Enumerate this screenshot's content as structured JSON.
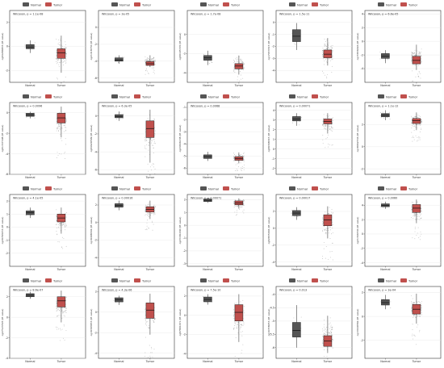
{
  "legend": {
    "normal": "Normal",
    "tumor": "Tumor"
  },
  "colors": {
    "normal": "#555555",
    "tumor": "#c0504d",
    "panel_border": "#333333",
    "grid": "#e6e6e6",
    "point": "#7f7f7f"
  },
  "chart_data": [
    {
      "type": "box",
      "title": "Wilcoxon, p = 1.1e-08",
      "ylabel": "cg04286833 (M value)",
      "categories": [
        "Normal",
        "Tumor"
      ],
      "ylim": [
        -3.0,
        3.0
      ],
      "yticks": [
        -2,
        0,
        2
      ],
      "normal": {
        "q1": -0.2,
        "median": -0.05,
        "q3": 0.15,
        "whisker_low": -0.55,
        "whisker_high": 0.5
      },
      "tumor": {
        "q1": -1.0,
        "median": -0.55,
        "q3": -0.2,
        "whisker_low": -2.2,
        "whisker_high": 0.9
      }
    },
    {
      "type": "box",
      "title": "Wilcoxon, p = 3e-05",
      "ylabel": "cg21418750 (M value)",
      "categories": [
        "Normal",
        "Tumor"
      ],
      "ylim": [
        -6.5,
        2.0
      ],
      "yticks": [
        -6,
        -4,
        -2,
        0
      ],
      "normal": {
        "q1": -4.0,
        "median": -3.85,
        "q3": -3.6,
        "whisker_low": -4.3,
        "whisker_high": -3.3
      },
      "tumor": {
        "q1": -4.5,
        "median": -4.3,
        "q3": -4.05,
        "whisker_low": -4.7,
        "whisker_high": -3.3
      }
    },
    {
      "type": "box",
      "title": "Wilcoxon, p = 1.7e-08",
      "ylabel": "cg00105370 (M value)",
      "categories": [
        "Normal",
        "Tumor"
      ],
      "ylim": [
        -5.0,
        2.5
      ],
      "yticks": [
        -4,
        -2,
        0
      ],
      "normal": {
        "q1": -2.7,
        "median": -2.45,
        "q3": -2.2,
        "whisker_low": -3.2,
        "whisker_high": -1.7
      },
      "tumor": {
        "q1": -3.6,
        "median": -3.3,
        "q3": -3.05,
        "whisker_low": -4.2,
        "whisker_high": -2.2
      }
    },
    {
      "type": "box",
      "title": "Wilcoxon, p = 1.5e-11",
      "ylabel": "cg17653547 (M value)",
      "categories": [
        "Normal",
        "Tumor"
      ],
      "ylim": [
        -5.0,
        1.0
      ],
      "yticks": [
        -4,
        -3,
        -2,
        -1,
        0
      ],
      "normal": {
        "q1": -1.6,
        "median": -1.15,
        "q3": -0.6,
        "whisker_low": -2.3,
        "whisker_high": -0.05
      },
      "tumor": {
        "q1": -2.95,
        "median": -2.65,
        "q3": -2.3,
        "whisker_low": -3.6,
        "whisker_high": -1.3
      }
    },
    {
      "type": "box",
      "title": "Wilcoxon, p = 6.6e-05",
      "ylabel": "cg15836026 (M value)",
      "categories": [
        "Normal",
        "Tumor"
      ],
      "ylim": [
        -6.0,
        4.5
      ],
      "yticks": [
        -4,
        -2,
        0,
        2,
        4
      ],
      "normal": {
        "q1": -2.5,
        "median": -2.2,
        "q3": -1.8,
        "whisker_low": -3.2,
        "whisker_high": -1.3
      },
      "tumor": {
        "q1": -3.3,
        "median": -2.8,
        "q3": -2.2,
        "whisker_low": -4.2,
        "whisker_high": -0.5
      }
    },
    {
      "type": "box",
      "title": "Wilcoxon, p = 0.0096",
      "ylabel": "cg01727198 (M value)",
      "categories": [
        "Normal",
        "Tumor"
      ],
      "ylim": [
        -6.0,
        1.0
      ],
      "yticks": [
        -6,
        -4,
        -2,
        0
      ],
      "normal": {
        "q1": -0.35,
        "median": -0.2,
        "q3": -0.05,
        "whisker_low": -0.55,
        "whisker_high": 0.1
      },
      "tumor": {
        "q1": -1.0,
        "median": -0.5,
        "q3": -0.05,
        "whisker_low": -2.4,
        "whisker_high": 0.6
      }
    },
    {
      "type": "box",
      "title": "Wilcoxon, p = 6.3e-05",
      "ylabel": "cg04629599 (M value)",
      "categories": [
        "Normal",
        "Tumor"
      ],
      "ylim": [
        -6.5,
        1.5
      ],
      "yticks": [
        -6,
        -4,
        -2,
        0
      ],
      "normal": {
        "q1": -0.2,
        "median": -0.05,
        "q3": 0.15,
        "whisker_low": -0.55,
        "whisker_high": 0.5
      },
      "tumor": {
        "q1": -2.4,
        "median": -1.4,
        "q3": -0.55,
        "whisker_low": -5.2,
        "whisker_high": 0.7
      }
    },
    {
      "type": "box",
      "title": "Wilcoxon, p = 0.0068",
      "ylabel": "cg24946138 (M value)",
      "categories": [
        "Normal",
        "Tumor"
      ],
      "ylim": [
        -6.5,
        -0.6
      ],
      "yticks": [
        -6,
        -5,
        -4,
        -3,
        -2,
        -1
      ],
      "normal": {
        "q1": -5.2,
        "median": -5.05,
        "q3": -4.9,
        "whisker_low": -5.4,
        "whisker_high": -4.65
      },
      "tumor": {
        "q1": -5.35,
        "median": -5.2,
        "q3": -5.05,
        "whisker_low": -5.6,
        "whisker_high": -4.7
      }
    },
    {
      "type": "box",
      "title": "Wilcoxon, p = 0.00071",
      "ylabel": "cg09368345 (M value)",
      "categories": [
        "Normal",
        "Tumor"
      ],
      "ylim": [
        -2.6,
        4.8
      ],
      "yticks": [
        -2,
        -1,
        0,
        1,
        2,
        3,
        4
      ],
      "normal": {
        "q1": 2.9,
        "median": 3.1,
        "q3": 3.35,
        "whisker_low": 2.4,
        "whisker_high": 3.7
      },
      "tumor": {
        "q1": 2.6,
        "median": 2.85,
        "q3": 3.1,
        "whisker_low": 1.6,
        "whisker_high": 3.7
      }
    },
    {
      "type": "box",
      "title": "Wilcoxon, p = 1.1e-12",
      "ylabel": "cg18062536 (M value)",
      "categories": [
        "Normal",
        "Tumor"
      ],
      "ylim": [
        -2.5,
        4.0
      ],
      "yticks": [
        -2,
        0,
        2
      ],
      "normal": {
        "q1": 2.7,
        "median": 2.85,
        "q3": 3.0,
        "whisker_low": 2.4,
        "whisker_high": 3.3
      },
      "tumor": {
        "q1": 2.1,
        "median": 2.35,
        "q3": 2.55,
        "whisker_low": 1.5,
        "whisker_high": 3.1
      }
    },
    {
      "type": "box",
      "title": "Wilcoxon, p = 4.1e-05",
      "ylabel": "cg20793453 (M value)",
      "categories": [
        "Normal",
        "Tumor"
      ],
      "ylim": [
        -3.0,
        2.5
      ],
      "yticks": [
        -2,
        -1,
        0,
        1,
        2
      ],
      "normal": {
        "q1": 0.95,
        "median": 1.1,
        "q3": 1.25,
        "whisker_low": 0.7,
        "whisker_high": 1.5
      },
      "tumor": {
        "q1": 0.4,
        "median": 0.7,
        "q3": 1.0,
        "whisker_low": -0.5,
        "whisker_high": 1.5
      }
    },
    {
      "type": "box",
      "title": "Wilcoxon, p = 0.00016",
      "ylabel": "cg19498302 (M value)",
      "categories": [
        "Normal",
        "Tumor"
      ],
      "ylim": [
        -5.0,
        3.2
      ],
      "yticks": [
        -4,
        -2,
        0,
        2
      ],
      "normal": {
        "q1": 1.75,
        "median": 1.95,
        "q3": 2.15,
        "whisker_low": 1.4,
        "whisker_high": 2.5
      },
      "tumor": {
        "q1": 1.2,
        "median": 1.5,
        "q3": 1.8,
        "whisker_low": 0.4,
        "whisker_high": 2.5
      }
    },
    {
      "type": "box",
      "title": "Wilcoxon, p = 0.00071",
      "ylabel": "cg23181460 (M value)",
      "categories": [
        "Normal",
        "Tumor"
      ],
      "ylim": [
        -3.2,
        2.4
      ],
      "yticks": [
        -3,
        -2,
        -1,
        0,
        1,
        2
      ],
      "normal": {
        "q1": 1.85,
        "median": 1.95,
        "q3": 2.05,
        "whisker_low": 1.75,
        "whisker_high": 2.15
      },
      "tumor": {
        "q1": 1.6,
        "median": 1.75,
        "q3": 1.9,
        "whisker_low": 1.3,
        "whisker_high": 2.1
      }
    },
    {
      "type": "box",
      "title": "Wilcoxon, p = 0.00017",
      "ylabel": "cg02835004 (M value)",
      "categories": [
        "Normal",
        "Tumor"
      ],
      "ylim": [
        -4.5,
        4.0
      ],
      "yticks": [
        -4,
        -2,
        0,
        2
      ],
      "normal": {
        "q1": 1.5,
        "median": 1.8,
        "q3": 2.1,
        "whisker_low": 1.0,
        "whisker_high": 2.5
      },
      "tumor": {
        "q1": 0.3,
        "median": 1.0,
        "q3": 1.6,
        "whisker_low": -1.2,
        "whisker_high": 2.6
      }
    },
    {
      "type": "box",
      "title": "Wilcoxon, p = 0.0060",
      "ylabel": "cg21366530 (M value)",
      "categories": [
        "Normal",
        "Tumor"
      ],
      "ylim": [
        -4.5,
        5.5
      ],
      "yticks": [
        -4,
        -2,
        0,
        2,
        4
      ],
      "normal": {
        "q1": 3.8,
        "median": 4.0,
        "q3": 4.2,
        "whisker_low": 3.5,
        "whisker_high": 4.5
      },
      "tumor": {
        "q1": 3.0,
        "median": 3.6,
        "q3": 4.1,
        "whisker_low": 1.5,
        "whisker_high": 4.8
      }
    },
    {
      "type": "box",
      "title": "Wilcoxon, p = 8.6e-07",
      "ylabel": "cg27523597 (M value)",
      "categories": [
        "Normal",
        "Tumor"
      ],
      "ylim": [
        -4.0,
        3.0
      ],
      "yticks": [
        -4,
        -2,
        0,
        2
      ],
      "normal": {
        "q1": 2.0,
        "median": 2.15,
        "q3": 2.3,
        "whisker_low": 1.8,
        "whisker_high": 2.5
      },
      "tumor": {
        "q1": 1.0,
        "median": 1.6,
        "q3": 2.0,
        "whisker_low": -0.5,
        "whisker_high": 2.6
      }
    },
    {
      "type": "box",
      "title": "Wilcoxon, p = 4.3e-06",
      "ylabel": "cg19393853 (M value)",
      "categories": [
        "Normal",
        "Tumor"
      ],
      "ylim": [
        -4.5,
        2.5
      ],
      "yticks": [
        -4,
        -2,
        0,
        2
      ],
      "normal": {
        "q1": 1.0,
        "median": 1.2,
        "q3": 1.4,
        "whisker_low": 0.7,
        "whisker_high": 1.6
      },
      "tumor": {
        "q1": -0.6,
        "median": 0.2,
        "q3": 0.9,
        "whisker_low": -2.2,
        "whisker_high": 1.8
      }
    },
    {
      "type": "box",
      "title": "Wilcoxon, p = 7.5e-10",
      "ylabel": "cg07801671 (M value)",
      "categories": [
        "Normal",
        "Tumor"
      ],
      "ylim": [
        -4.5,
        3.0
      ],
      "yticks": [
        -4,
        -2,
        0,
        2
      ],
      "normal": {
        "q1": 1.4,
        "median": 1.65,
        "q3": 1.9,
        "whisker_low": 1.1,
        "whisker_high": 2.2
      },
      "tumor": {
        "q1": -0.6,
        "median": 0.3,
        "q3": 1.1,
        "whisker_low": -2.8,
        "whisker_high": 2.2
      }
    },
    {
      "type": "box",
      "title": "Wilcoxon, p = 0.013",
      "ylabel": "cg16358053 (M value)",
      "categories": [
        "Normal",
        "Tumor"
      ],
      "ylim": [
        -6.4,
        -3.7
      ],
      "yticks": [
        -6.0,
        -5.5,
        -5.0,
        -4.5,
        -4.0
      ],
      "normal": {
        "q1": -5.6,
        "median": -5.35,
        "q3": -5.05,
        "whisker_low": -6.0,
        "whisker_high": -4.4
      },
      "tumor": {
        "q1": -5.95,
        "median": -5.75,
        "q3": -5.55,
        "whisker_low": -6.2,
        "whisker_high": -4.8
      }
    },
    {
      "type": "box",
      "title": "Wilcoxon, p = 3e-04",
      "ylabel": "cg13640582 (M value)",
      "categories": [
        "Normal",
        "Tumor"
      ],
      "ylim": [
        -3.5,
        2.5
      ],
      "yticks": [
        -2,
        0,
        2
      ],
      "normal": {
        "q1": 0.95,
        "median": 1.15,
        "q3": 1.4,
        "whisker_low": 0.6,
        "whisker_high": 1.8
      },
      "tumor": {
        "q1": 0.2,
        "median": 0.6,
        "q3": 1.0,
        "whisker_low": -0.6,
        "whisker_high": 1.9
      }
    }
  ]
}
